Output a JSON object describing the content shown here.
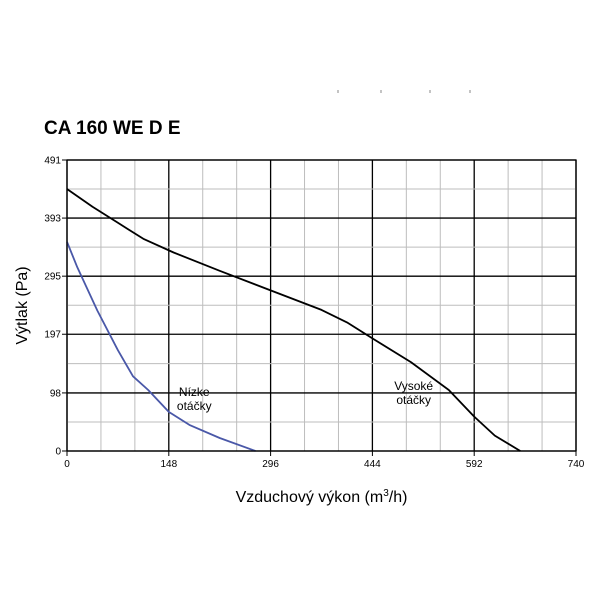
{
  "chart_data": {
    "type": "line",
    "title": "CA 160 WE D E",
    "xlabel": "Vzduchový výkon (m",
    "xlabel_sup": "3",
    "xlabel_tail": "/h)",
    "ylabel": "Výtlak (Pa)",
    "xlim": [
      0,
      740
    ],
    "ylim": [
      0,
      491
    ],
    "xticks": [
      0,
      148,
      296,
      444,
      592,
      740
    ],
    "yticks": [
      0,
      98,
      197,
      295,
      393,
      491
    ],
    "xtick_labels": [
      "0",
      "148",
      "296",
      "444",
      "592",
      "740"
    ],
    "ytick_labels": [
      "0",
      "98",
      "197",
      "295",
      "393",
      "491"
    ],
    "grid": true,
    "series": [
      {
        "color": "#000000",
        "points": [
          [
            0,
            442
          ],
          [
            37,
            412
          ],
          [
            74,
            385
          ],
          [
            111,
            358
          ],
          [
            155,
            335
          ],
          [
            222,
            304
          ],
          [
            296,
            271
          ],
          [
            370,
            238
          ],
          [
            407,
            217
          ],
          [
            444,
            190
          ],
          [
            500,
            150
          ],
          [
            555,
            103
          ],
          [
            592,
            58
          ],
          [
            622,
            26
          ],
          [
            659,
            0
          ]
        ]
      },
      {
        "color": "#4a58a8",
        "points": [
          [
            0,
            353
          ],
          [
            15,
            310
          ],
          [
            44,
            237
          ],
          [
            74,
            170
          ],
          [
            96,
            126
          ],
          [
            118,
            103
          ],
          [
            148,
            66
          ],
          [
            178,
            44
          ],
          [
            222,
            22
          ],
          [
            274,
            0
          ]
        ]
      }
    ],
    "annotations": [
      {
        "lines": [
          "Nízke",
          "otáčky"
        ],
        "x": 185,
        "y": 93,
        "align": "middle"
      },
      {
        "lines": [
          "Vysoké",
          "otáčky"
        ],
        "x": 504,
        "y": 103,
        "align": "middle"
      }
    ],
    "stray_marks": [
      [
        338,
        505
      ],
      [
        381,
        505
      ],
      [
        430,
        505
      ],
      [
        470,
        505
      ]
    ]
  }
}
